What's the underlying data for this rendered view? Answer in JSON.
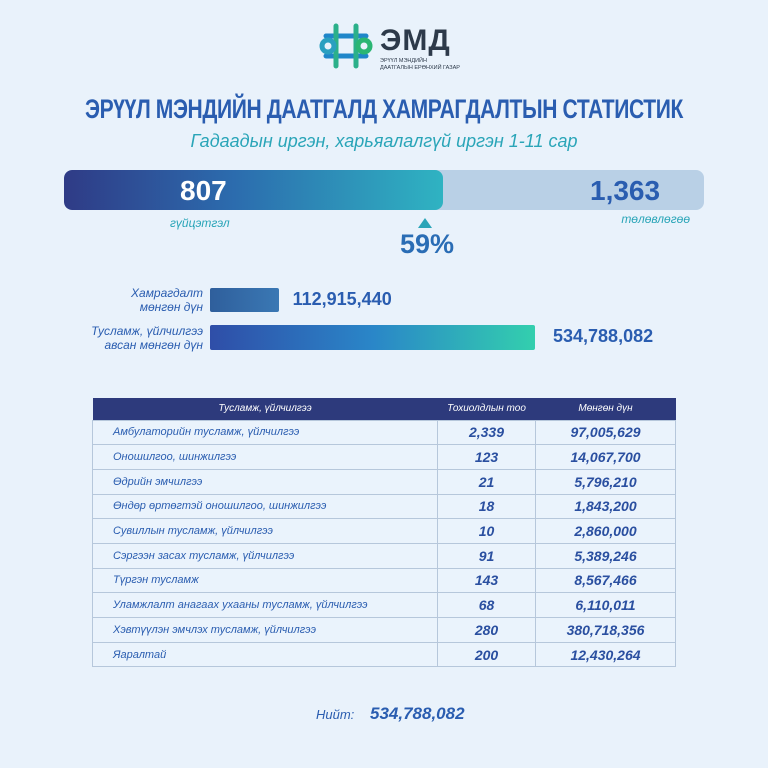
{
  "logo": {
    "name": "ЭМД",
    "subtitle": "ЭРҮҮЛ МЭНДИЙН ДААТГАЛЫН ЕРӨНХИЙ ГАЗАР",
    "colors": [
      "#1f7fc6",
      "#2bb673"
    ]
  },
  "title": "ЭРҮҮЛ МЭНДИЙН ДААТГАЛД ХАМРАГДАЛТЫН СТАТИСТИК",
  "subtitle": "Гадаадын иргэн, харьяалалгүй иргэн  1-11 сар",
  "progress": {
    "actual": "807",
    "actual_label": "гүйцэтгэл",
    "plan": "1,363",
    "plan_label": "төлөвлөгөө",
    "percent_label": "59%",
    "fraction": 0.592
  },
  "chart_data": {
    "type": "bar",
    "orientation": "horizontal",
    "categories": [
      "Хамрагдалт мөнгөн дүн",
      "Тусламж, үйлчилгээ авсан мөнгөн дүн"
    ],
    "values": [
      112915440,
      534788082
    ],
    "value_labels": [
      "112,915,440",
      "534,788,082"
    ],
    "label_lines": [
      [
        "Хамрагдалт",
        "мөнгөн дүн"
      ],
      [
        "Тусламж, үйлчилгээ",
        "авсан мөнгөн дүн"
      ]
    ]
  },
  "table": {
    "headers": [
      "Тусламж, үйлчилгээ",
      "Тохиолдлын тоо",
      "Мөнгөн дүн"
    ],
    "rows": [
      [
        "Амбулаторийн тусламж, үйлчилгээ",
        "2,339",
        "97,005,629"
      ],
      [
        "Оношилгоо, шинжилгээ",
        "123",
        "14,067,700"
      ],
      [
        "Өдрийн эмчилгээ",
        "21",
        "5,796,210"
      ],
      [
        "Өндөр өртөгтэй оношилгоо, шинжилгээ",
        "18",
        "1,843,200"
      ],
      [
        "Сувиллын тусламж, үйлчилгээ",
        "10",
        "2,860,000"
      ],
      [
        "Сэргээн засах тусламж, үйлчилгээ",
        "91",
        "5,389,246"
      ],
      [
        "Түргэн тусламж",
        "143",
        "8,567,466"
      ],
      [
        "Уламжлалт анагаах ухааны тусламж, үйлчилгээ",
        "68",
        "6,110,011"
      ],
      [
        "Хэвтүүлэн эмчлэх тусламж, үйлчилгээ",
        "280",
        "380,718,356"
      ],
      [
        "Яаралтай",
        "200",
        "12,430,264"
      ]
    ]
  },
  "total": {
    "label": "Нийт:",
    "value": "534,788,082"
  }
}
